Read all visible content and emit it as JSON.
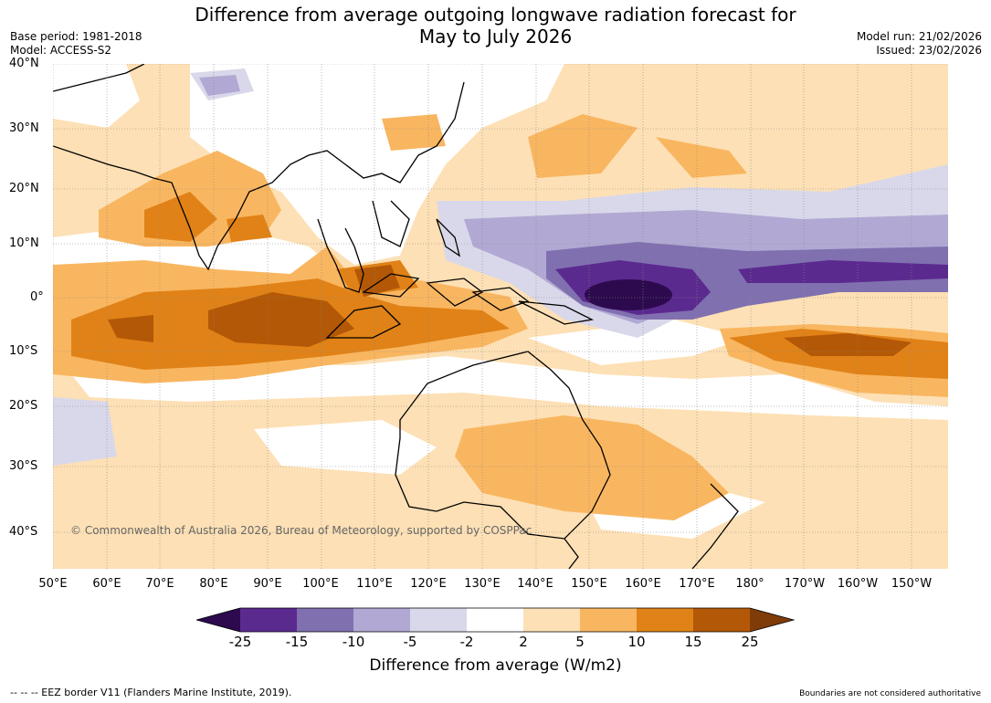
{
  "title": {
    "line1": "Difference from average outgoing longwave radiation forecast for",
    "line2": "May to July 2026"
  },
  "meta_left": {
    "base_period": "Base period: 1981-2018",
    "model": "Model: ACCESS-S2"
  },
  "meta_right": {
    "model_run": "Model run: 21/02/2026",
    "issued": "Issued: 23/02/2026"
  },
  "latitude_labels": [
    "40°N",
    "30°N",
    "20°N",
    "10°N",
    "0°",
    "10°S",
    "20°S",
    "30°S",
    "40°S"
  ],
  "longitude_labels": [
    "50°E",
    "60°E",
    "70°E",
    "80°E",
    "90°E",
    "100°E",
    "110°E",
    "120°E",
    "130°E",
    "140°E",
    "150°E",
    "160°E",
    "170°E",
    "180°",
    "170°W",
    "160°W",
    "150°W"
  ],
  "copyright": "© Commonwealth of Australia 2026, Bureau of Meteorology, supported by COSPPac",
  "legend": {
    "title": "Difference from average (W/m2)",
    "ticks": [
      "-25",
      "-15",
      "-10",
      "-5",
      "-2",
      "2",
      "5",
      "10",
      "15",
      "25"
    ],
    "colors": [
      "#2d0a4e",
      "#5b2a8f",
      "#8070b0",
      "#b1a9d3",
      "#d9d8ea",
      "#ffffff",
      "#fde0b5",
      "#f9b660",
      "#e08217",
      "#b35806",
      "#7f3b08"
    ]
  },
  "footer": {
    "left": "--  --  -- EEZ border V11 (Flanders Marine Institute, 2019).",
    "right": "Boundaries are not considered authoritative"
  }
}
